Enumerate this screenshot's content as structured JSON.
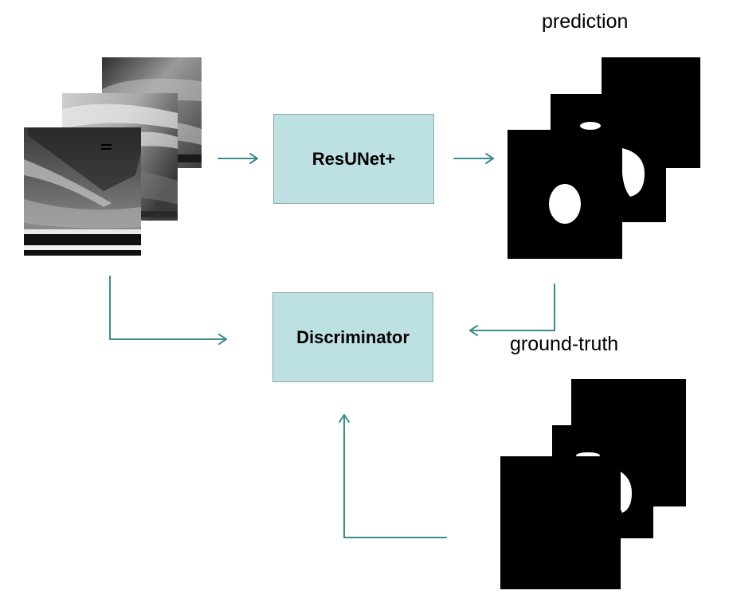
{
  "colors": {
    "arrow": "#3c8c8c",
    "box_fill": "#bde0e3",
    "box_border": "#8fa8ad",
    "mask_bg": "#000000",
    "mask_fg": "#ffffff"
  },
  "nodes": {
    "generator": {
      "label": "ResUNet+"
    },
    "discriminator": {
      "label": "Discriminator"
    }
  },
  "labels": {
    "prediction": "prediction",
    "ground_truth": "ground-truth"
  },
  "edges": [
    {
      "from": "input-images",
      "to": "generator"
    },
    {
      "from": "generator",
      "to": "prediction-masks"
    },
    {
      "from": "input-images",
      "to": "discriminator"
    },
    {
      "from": "prediction-masks",
      "to": "discriminator"
    },
    {
      "from": "ground-truth-masks",
      "to": "discriminator"
    }
  ],
  "icons": {
    "input_stack": "ultrasound-image-stack",
    "prediction_stack": "binary-mask-stack",
    "ground_truth_stack": "binary-mask-stack"
  }
}
